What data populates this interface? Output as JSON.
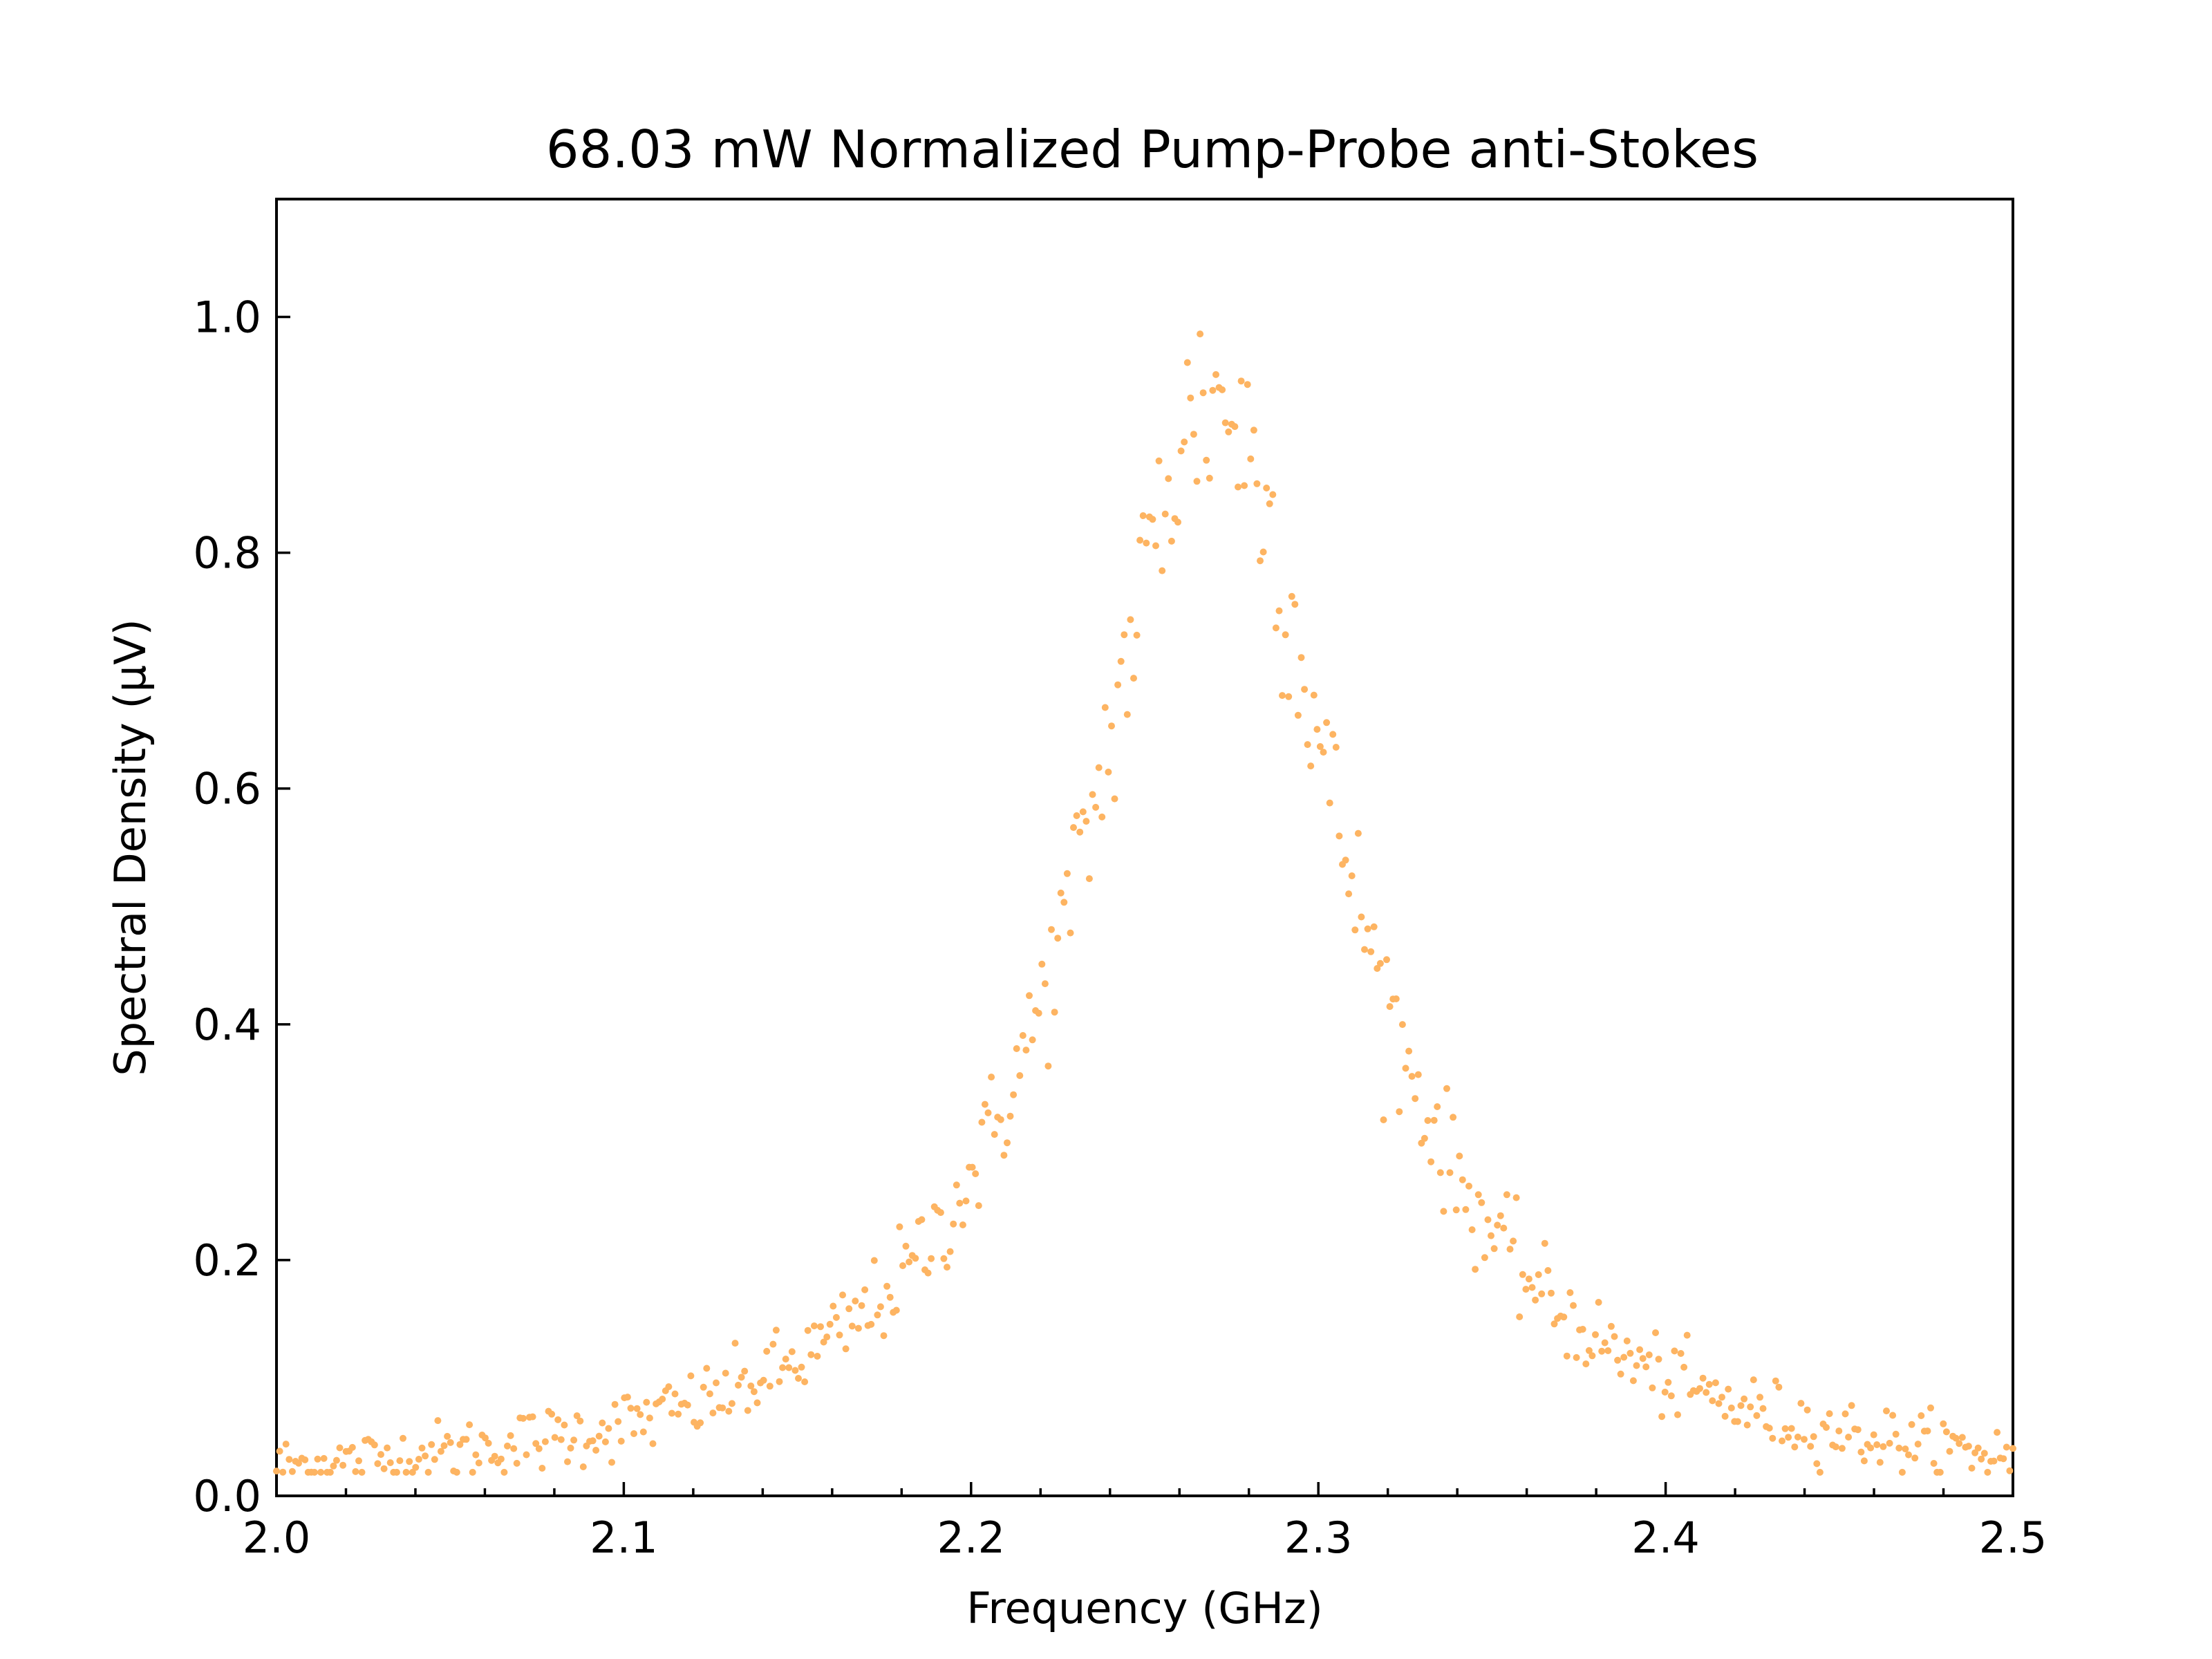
{
  "chart_data": {
    "type": "scatter",
    "title": "68.03 mW Normalized Pump-Probe anti-Stokes",
    "xlabel": "Frequency (GHz)",
    "ylabel": "Spectral Density (μV)",
    "xlim": [
      2.0,
      2.5
    ],
    "ylim": [
      0.0,
      1.1
    ],
    "x_ticks": [
      "2.0",
      "2.1",
      "2.2",
      "2.3",
      "2.4",
      "2.5"
    ],
    "y_ticks": [
      "0.0",
      "0.2",
      "0.4",
      "0.6",
      "0.8",
      "1.0"
    ],
    "x_tick_values": [
      2.0,
      2.1,
      2.2,
      2.3,
      2.4,
      2.5
    ],
    "y_tick_values": [
      0.0,
      0.2,
      0.4,
      0.6,
      0.8,
      1.0
    ],
    "x_minor_step": 0.02,
    "tick_direction": "in",
    "grid": false,
    "legend": "none",
    "marker_color": "#fdb462",
    "series": [
      {
        "model": "lorentzian",
        "center": 2.27,
        "hwhm": 0.045,
        "amplitude": 0.93,
        "x_start": 2.0,
        "x_end": 2.5,
        "n_points": 550,
        "noise_fraction": 0.045,
        "noise_floor": 0.012
      }
    ]
  }
}
